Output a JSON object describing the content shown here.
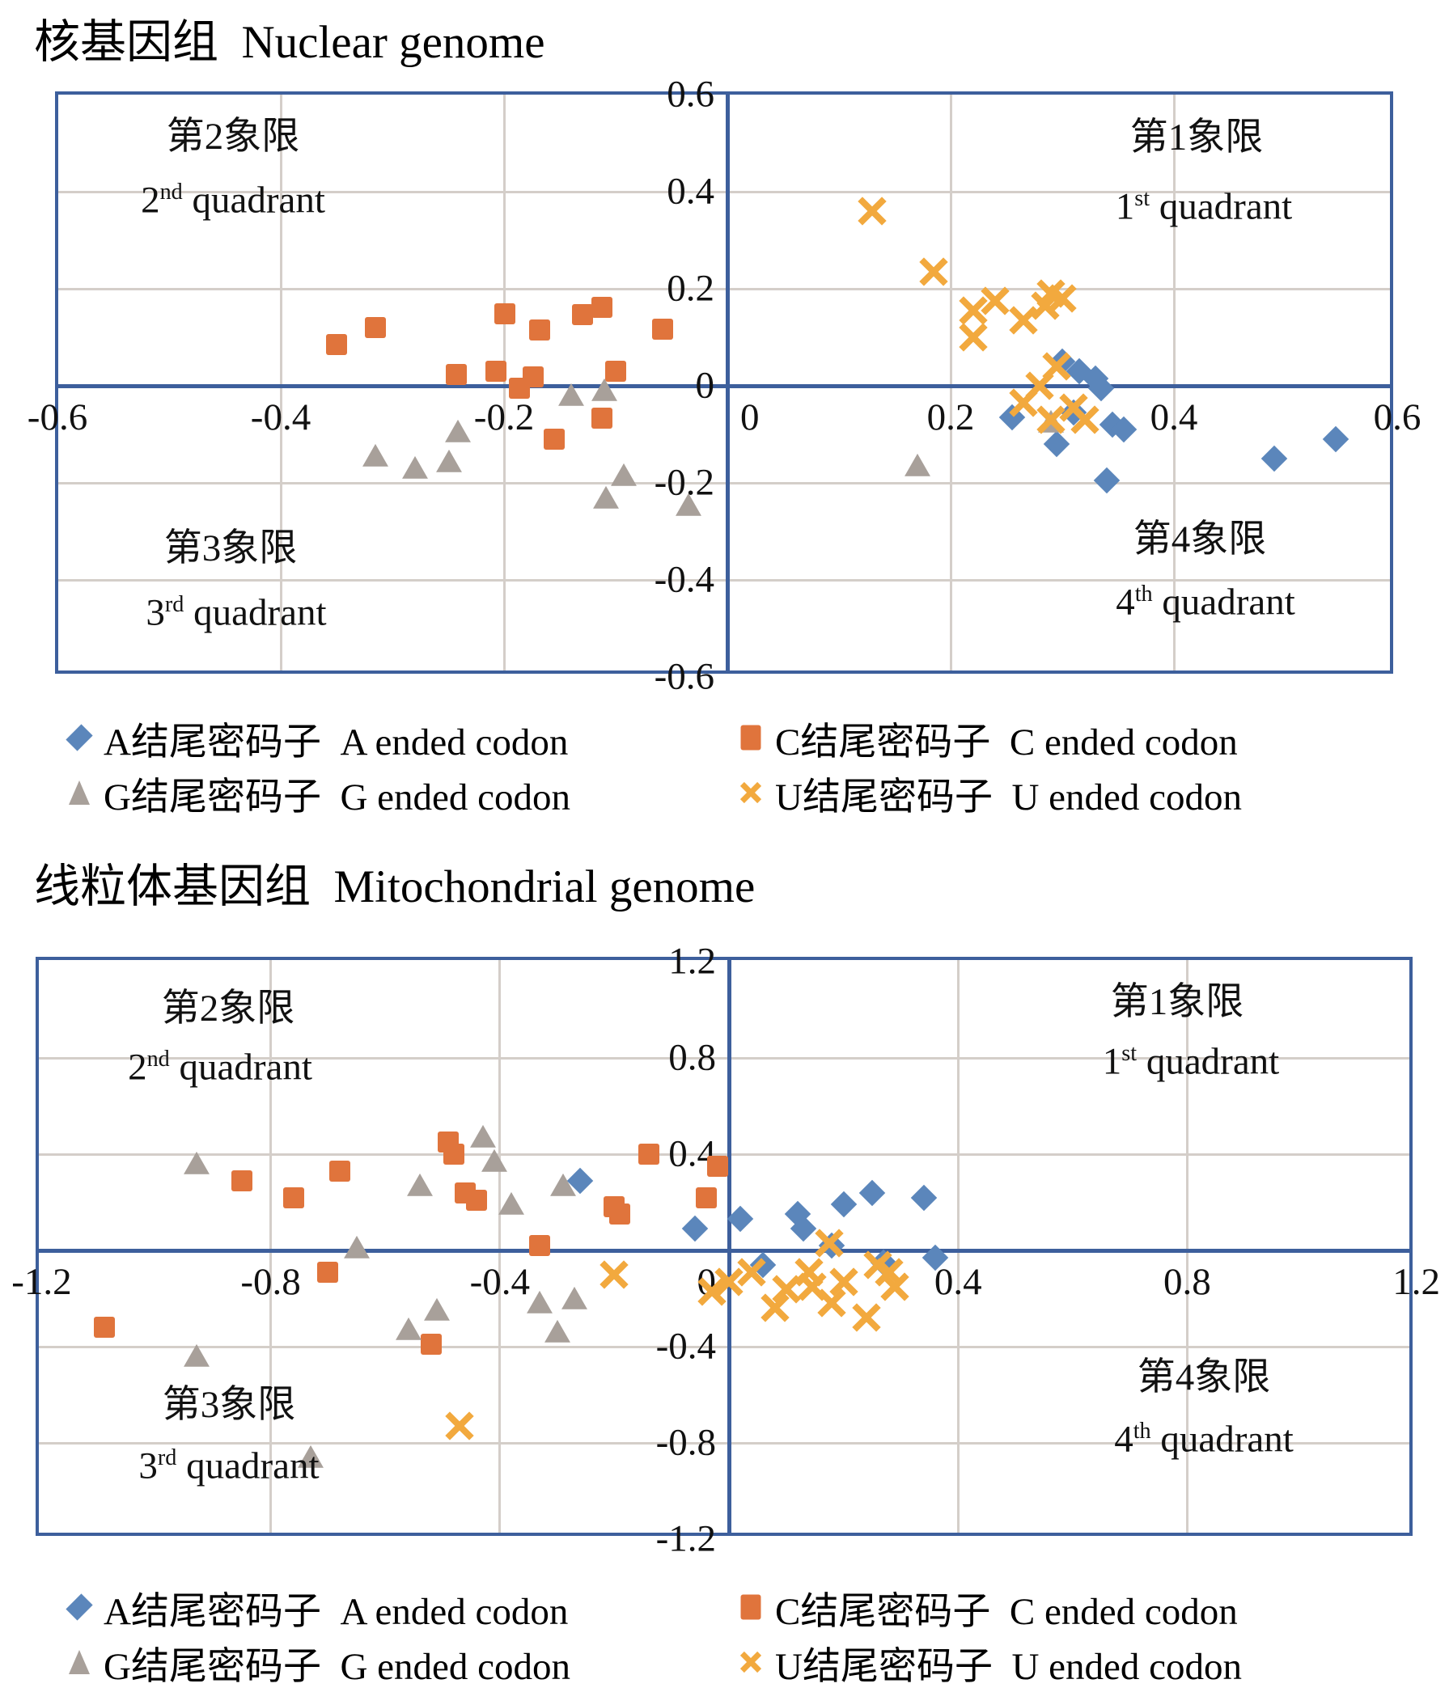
{
  "colors": {
    "a_series": "#5b86bb",
    "c_series": "#e0743c",
    "g_series": "#a8a09a",
    "u_series": "#f2a93e",
    "axis": "#3d5f9c",
    "grid": "#d4cec9",
    "text": "#111111"
  },
  "legend": {
    "items": [
      {
        "label": "A结尾密码子  A ended codon"
      },
      {
        "label": "C结尾密码子  C ended codon"
      },
      {
        "label": "G结尾密码子  G ended codon"
      },
      {
        "label": "U结尾密码子  U ended codon"
      }
    ]
  },
  "chart_data": [
    {
      "type": "scatter",
      "title": "核基因组  Nuclear genome",
      "xlabel": "",
      "ylabel": "",
      "xlim": [
        -0.6,
        0.6
      ],
      "ylim": [
        -0.6,
        0.6
      ],
      "grid": true,
      "legend_position": "bottom",
      "x_ticks": [
        {
          "v": -0.6,
          "t": "-0.6"
        },
        {
          "v": -0.4,
          "t": "-0.4"
        },
        {
          "v": -0.2,
          "t": "-0.2"
        },
        {
          "v": 0,
          "t": "0"
        },
        {
          "v": 0.2,
          "t": "0.2"
        },
        {
          "v": 0.4,
          "t": "0.4"
        },
        {
          "v": 0.6,
          "t": "0.6"
        }
      ],
      "y_ticks": [
        {
          "v": 0.6,
          "t": "0.6"
        },
        {
          "v": 0.4,
          "t": "0.4"
        },
        {
          "v": 0.2,
          "t": "0.2"
        },
        {
          "v": 0,
          "t": "0"
        },
        {
          "v": -0.2,
          "t": "-0.2"
        },
        {
          "v": -0.4,
          "t": "-0.4"
        },
        {
          "v": -0.6,
          "t": "-0.6"
        }
      ],
      "quadrants": [
        {
          "zh": "第2象限",
          "num": "2",
          "sup": "nd",
          "rest": " quadrant"
        },
        {
          "zh": "第1象限",
          "num": "1",
          "sup": "st",
          "rest": " quadrant"
        },
        {
          "zh": "第3象限",
          "num": "3",
          "sup": "rd",
          "rest": " quadrant"
        },
        {
          "zh": "第4象限",
          "num": "4",
          "sup": "th",
          "rest": " quadrant"
        }
      ],
      "series": [
        {
          "key": "a",
          "name": "A ended codon",
          "marker": "diamond",
          "points": [
            [
              0.3,
              0.05
            ],
            [
              0.315,
              0.03
            ],
            [
              0.33,
              0.015
            ],
            [
              0.335,
              -0.005
            ],
            [
              0.31,
              -0.055
            ],
            [
              0.345,
              -0.08
            ],
            [
              0.355,
              -0.09
            ],
            [
              0.295,
              -0.12
            ],
            [
              0.34,
              -0.195
            ],
            [
              0.255,
              -0.065
            ],
            [
              0.49,
              -0.15
            ],
            [
              0.545,
              -0.11
            ]
          ]
        },
        {
          "key": "c",
          "name": "C ended codon",
          "marker": "square",
          "points": [
            [
              -0.35,
              0.085
            ],
            [
              -0.315,
              0.12
            ],
            [
              -0.243,
              0.023
            ],
            [
              -0.207,
              0.03
            ],
            [
              -0.186,
              -0.005
            ],
            [
              -0.174,
              0.018
            ],
            [
              -0.199,
              0.148
            ],
            [
              -0.168,
              0.115
            ],
            [
              -0.13,
              0.147
            ],
            [
              -0.112,
              0.162
            ],
            [
              -0.058,
              0.117
            ],
            [
              -0.1,
              0.03
            ],
            [
              -0.112,
              -0.067
            ],
            [
              -0.155,
              -0.11
            ]
          ]
        },
        {
          "key": "g",
          "name": "G ended codon",
          "marker": "triangle",
          "points": [
            [
              -0.315,
              -0.145
            ],
            [
              -0.28,
              -0.17
            ],
            [
              -0.241,
              -0.095
            ],
            [
              -0.249,
              -0.157
            ],
            [
              -0.14,
              -0.02
            ],
            [
              -0.11,
              -0.01
            ],
            [
              -0.109,
              -0.232
            ],
            [
              -0.093,
              -0.185
            ],
            [
              -0.035,
              -0.247
            ],
            [
              0.17,
              -0.165
            ],
            [
              0.29,
              -0.075
            ]
          ]
        },
        {
          "key": "u",
          "name": "U ended codon",
          "marker": "x",
          "points": [
            [
              0.13,
              0.36
            ],
            [
              0.185,
              0.235
            ],
            [
              0.22,
              0.155
            ],
            [
              0.22,
              0.1
            ],
            [
              0.24,
              0.175
            ],
            [
              0.265,
              0.135
            ],
            [
              0.285,
              0.165
            ],
            [
              0.29,
              0.19
            ],
            [
              0.3,
              0.18
            ],
            [
              0.295,
              0.04
            ],
            [
              0.28,
              0.0
            ],
            [
              0.265,
              -0.035
            ],
            [
              0.29,
              -0.07
            ],
            [
              0.31,
              -0.045
            ],
            [
              0.32,
              -0.07
            ]
          ]
        }
      ]
    },
    {
      "type": "scatter",
      "title": "线粒体基因组  Mitochondrial genome",
      "xlabel": "",
      "ylabel": "",
      "xlim": [
        -1.2,
        1.2
      ],
      "ylim": [
        -1.2,
        1.2
      ],
      "grid": true,
      "legend_position": "bottom",
      "x_ticks": [
        {
          "v": -1.2,
          "t": "-1.2"
        },
        {
          "v": -0.8,
          "t": "-0.8"
        },
        {
          "v": -0.4,
          "t": "-0.4"
        },
        {
          "v": 0,
          "t": "0"
        },
        {
          "v": 0.4,
          "t": "0.4"
        },
        {
          "v": 0.8,
          "t": "0.8"
        },
        {
          "v": 1.2,
          "t": "1.2"
        }
      ],
      "y_ticks": [
        {
          "v": 1.2,
          "t": "1.2"
        },
        {
          "v": 0.8,
          "t": "0.8"
        },
        {
          "v": 0.4,
          "t": "0.4"
        },
        {
          "v": -0.4,
          "t": "-0.4"
        },
        {
          "v": -0.8,
          "t": "-0.8"
        },
        {
          "v": -1.2,
          "t": "-1.2"
        }
      ],
      "quadrants": [
        {
          "zh": "第2象限",
          "num": "2",
          "sup": "nd",
          "rest": " quadrant"
        },
        {
          "zh": "第1象限",
          "num": "1",
          "sup": "st",
          "rest": " quadrant"
        },
        {
          "zh": "第3象限",
          "num": "3",
          "sup": "rd",
          "rest": " quadrant"
        },
        {
          "zh": "第4象限",
          "num": "4",
          "sup": "th",
          "rest": " quadrant"
        }
      ],
      "series": [
        {
          "key": "a",
          "name": "A ended codon",
          "marker": "diamond",
          "points": [
            [
              -0.26,
              0.29
            ],
            [
              -0.06,
              0.09
            ],
            [
              0.02,
              0.13
            ],
            [
              0.12,
              0.15
            ],
            [
              0.13,
              0.09
            ],
            [
              0.18,
              0.02
            ],
            [
              0.2,
              0.19
            ],
            [
              0.25,
              0.24
            ],
            [
              0.34,
              0.22
            ],
            [
              0.06,
              -0.06
            ],
            [
              0.27,
              -0.05
            ],
            [
              0.36,
              -0.03
            ]
          ]
        },
        {
          "key": "c",
          "name": "C ended codon",
          "marker": "square",
          "points": [
            [
              -1.09,
              -0.32
            ],
            [
              -0.85,
              0.29
            ],
            [
              -0.76,
              0.22
            ],
            [
              -0.7,
              -0.09
            ],
            [
              -0.68,
              0.33
            ],
            [
              -0.52,
              -0.39
            ],
            [
              -0.49,
              0.45
            ],
            [
              -0.48,
              0.4
            ],
            [
              -0.46,
              0.24
            ],
            [
              -0.44,
              0.21
            ],
            [
              -0.33,
              0.02
            ],
            [
              -0.2,
              0.18
            ],
            [
              -0.19,
              0.15
            ],
            [
              -0.14,
              0.4
            ],
            [
              -0.04,
              0.22
            ],
            [
              -0.02,
              0.35
            ]
          ]
        },
        {
          "key": "g",
          "name": "G ended codon",
          "marker": "triangle",
          "points": [
            [
              -0.93,
              0.36
            ],
            [
              -0.65,
              0.01
            ],
            [
              -0.56,
              -0.33
            ],
            [
              -0.54,
              0.27
            ],
            [
              -0.51,
              -0.25
            ],
            [
              -0.43,
              0.47
            ],
            [
              -0.41,
              0.37
            ],
            [
              -0.38,
              0.19
            ],
            [
              -0.33,
              -0.22
            ],
            [
              -0.3,
              -0.34
            ],
            [
              -0.29,
              0.27
            ],
            [
              -0.27,
              -0.2
            ],
            [
              -0.93,
              -0.44
            ],
            [
              -0.73,
              -0.86
            ]
          ]
        },
        {
          "key": "u",
          "name": "U ended codon",
          "marker": "x",
          "points": [
            [
              -0.47,
              -0.73
            ],
            [
              -0.2,
              -0.1
            ],
            [
              -0.03,
              -0.17
            ],
            [
              0.0,
              -0.13
            ],
            [
              0.04,
              -0.09
            ],
            [
              0.08,
              -0.24
            ],
            [
              0.1,
              -0.16
            ],
            [
              0.14,
              -0.09
            ],
            [
              0.145,
              -0.15
            ],
            [
              0.175,
              0.03
            ],
            [
              0.18,
              -0.22
            ],
            [
              0.2,
              -0.13
            ],
            [
              0.24,
              -0.28
            ],
            [
              0.26,
              -0.06
            ],
            [
              0.28,
              -0.09
            ],
            [
              0.29,
              -0.15
            ]
          ]
        }
      ]
    }
  ]
}
